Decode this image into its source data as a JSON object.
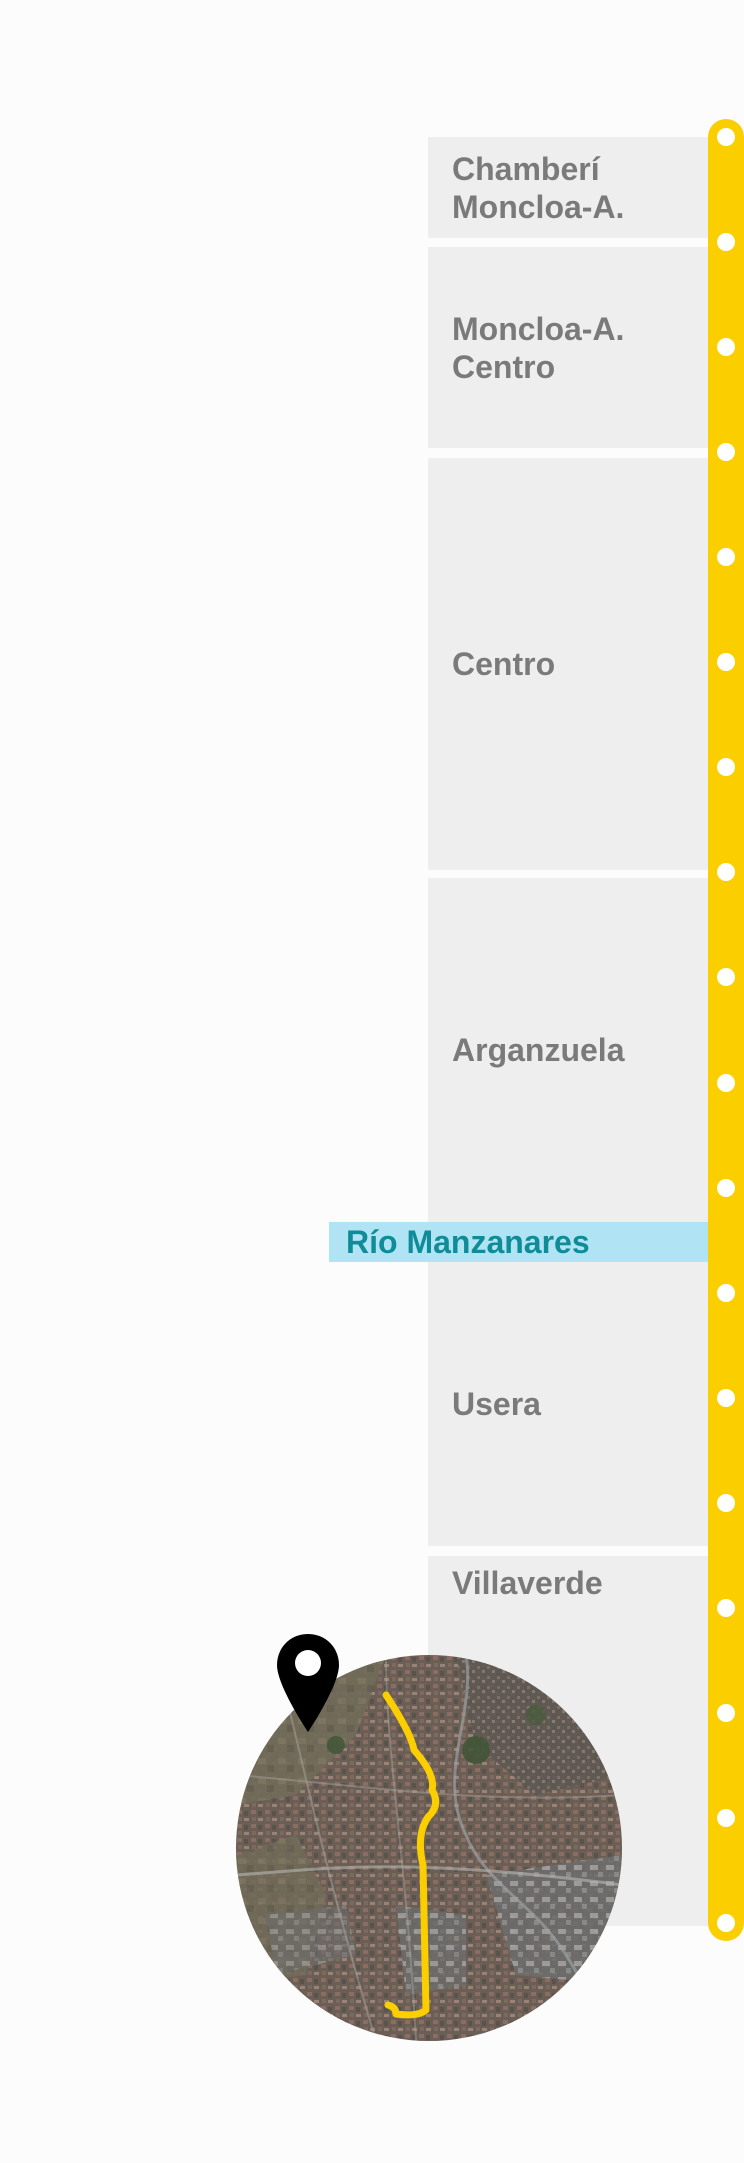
{
  "districts": [
    {
      "id": "chamberi",
      "line1": "Chamberí",
      "line2": "Moncloa-A."
    },
    {
      "id": "moncloa",
      "line1": "Moncloa-A.",
      "line2": "Centro"
    },
    {
      "id": "centro",
      "line1": "Centro"
    },
    {
      "id": "arganzuela",
      "line1": "Arganzuela"
    },
    {
      "id": "usera",
      "line1": "Usera"
    },
    {
      "id": "villaverde",
      "line1": "Villaverde"
    }
  ],
  "river": {
    "label": "Río Manzanares"
  },
  "line": {
    "stop_count": 18
  },
  "map": {
    "type": "aerial satellite view",
    "route_color": "#fbce00"
  },
  "icons": {
    "pin": "location-pin-icon"
  },
  "colors": {
    "accent": "#fbce00",
    "river_bg": "#b0e3f3",
    "river_text": "#108c99",
    "district_bg": "#eeeeee",
    "district_text": "#7a7a7a"
  }
}
